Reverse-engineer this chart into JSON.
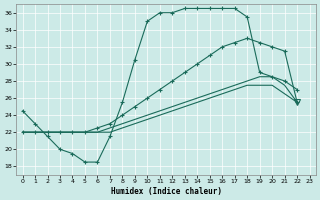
{
  "xlabel": "Humidex (Indice chaleur)",
  "bg_color": "#cceae7",
  "line_color": "#1a6b5a",
  "grid_color": "#ffffff",
  "xlim": [
    -0.5,
    23.5
  ],
  "ylim": [
    17,
    37
  ],
  "xticks": [
    0,
    1,
    2,
    3,
    4,
    5,
    6,
    7,
    8,
    9,
    10,
    11,
    12,
    13,
    14,
    15,
    16,
    17,
    18,
    19,
    20,
    21,
    22,
    23
  ],
  "yticks": [
    18,
    20,
    22,
    24,
    26,
    28,
    30,
    32,
    34,
    36
  ],
  "s1_x": [
    0,
    1,
    2,
    3,
    4,
    5,
    6,
    7,
    8,
    9,
    10,
    11,
    12,
    13,
    14,
    15,
    16,
    17,
    18,
    19,
    20,
    21,
    22
  ],
  "s1_y": [
    24.5,
    23.0,
    21.5,
    20.0,
    19.5,
    18.5,
    18.5,
    21.5,
    25.5,
    30.5,
    35.0,
    36.0,
    36.0,
    36.5,
    36.5,
    36.5,
    36.5,
    36.5,
    35.5,
    29.0,
    28.5,
    28.0,
    27.0
  ],
  "s2_x": [
    0,
    1,
    2,
    3,
    4,
    5,
    6,
    7,
    8,
    9,
    10,
    11,
    12,
    13,
    14,
    15,
    16,
    17,
    18,
    19,
    20,
    21,
    22
  ],
  "s2_y": [
    22.0,
    22.0,
    22.0,
    22.0,
    22.0,
    22.0,
    22.5,
    23.0,
    24.0,
    25.0,
    26.0,
    27.0,
    28.0,
    29.0,
    30.0,
    31.0,
    32.0,
    32.5,
    33.0,
    32.5,
    32.0,
    31.5,
    25.5
  ],
  "s3_x": [
    0,
    1,
    2,
    3,
    4,
    5,
    6,
    7,
    8,
    9,
    10,
    11,
    12,
    13,
    14,
    15,
    16,
    17,
    18,
    19,
    20,
    21,
    22
  ],
  "s3_y": [
    22.0,
    22.0,
    22.0,
    22.0,
    22.0,
    22.0,
    22.0,
    22.5,
    23.0,
    23.5,
    24.0,
    24.5,
    25.0,
    25.5,
    26.0,
    26.5,
    27.0,
    27.5,
    28.0,
    28.5,
    28.5,
    27.5,
    25.5
  ],
  "s4_x": [
    0,
    1,
    2,
    3,
    4,
    5,
    6,
    7,
    8,
    9,
    10,
    11,
    12,
    13,
    14,
    15,
    16,
    17,
    18,
    19,
    20,
    21,
    22
  ],
  "s4_y": [
    22.0,
    22.0,
    22.0,
    22.0,
    22.0,
    22.0,
    22.0,
    22.0,
    22.5,
    23.0,
    23.5,
    24.0,
    24.5,
    25.0,
    25.5,
    26.0,
    26.5,
    27.0,
    27.5,
    27.5,
    27.5,
    26.5,
    25.5
  ]
}
